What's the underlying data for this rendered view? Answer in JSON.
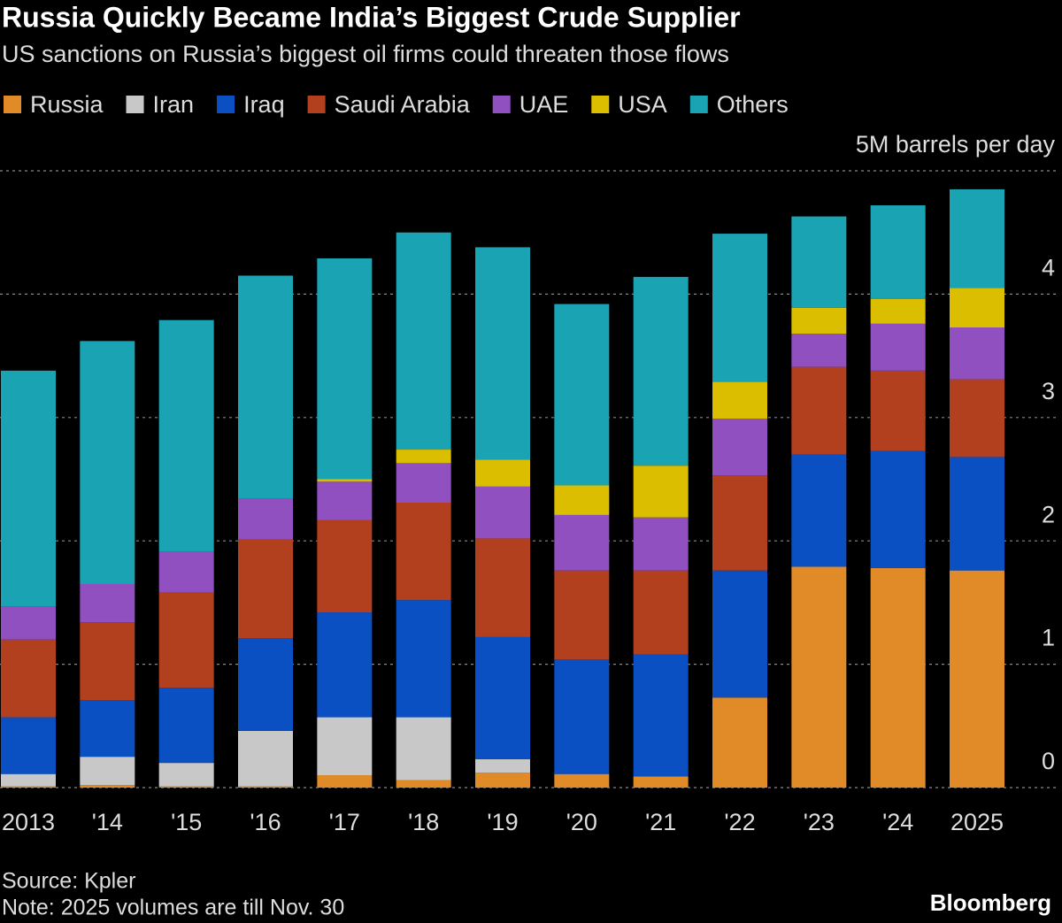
{
  "chart_data": {
    "type": "stacked_bar",
    "title": "Russia Quickly Became India’s Biggest Crude Supplier",
    "subtitle": "US sanctions on Russia’s biggest oil firms could threaten those flows",
    "categories": [
      "2013",
      "'14",
      "'15",
      "'16",
      "'17",
      "'18",
      "'19",
      "'20",
      "'21",
      "'22",
      "'23",
      "'24",
      "2025"
    ],
    "series": [
      {
        "name": "Russia",
        "color": "#e08b27",
        "values": [
          0.01,
          0.02,
          0.01,
          0.01,
          0.1,
          0.06,
          0.12,
          0.11,
          0.09,
          0.73,
          1.79,
          1.78,
          1.76
        ]
      },
      {
        "name": "Iran",
        "color": "#c8c8c8",
        "values": [
          0.1,
          0.23,
          0.19,
          0.45,
          0.47,
          0.51,
          0.11,
          0,
          0,
          0,
          0,
          0,
          0
        ]
      },
      {
        "name": "Iraq",
        "color": "#0a50c3",
        "values": [
          0.46,
          0.46,
          0.61,
          0.75,
          0.85,
          0.95,
          0.99,
          0.93,
          0.99,
          1.03,
          0.91,
          0.95,
          0.92
        ]
      },
      {
        "name": "Saudi Arabia",
        "color": "#b23f1e",
        "values": [
          0.63,
          0.63,
          0.77,
          0.8,
          0.75,
          0.79,
          0.8,
          0.72,
          0.68,
          0.77,
          0.71,
          0.65,
          0.63
        ]
      },
      {
        "name": "UAE",
        "color": "#9150c0",
        "values": [
          0.27,
          0.31,
          0.33,
          0.33,
          0.31,
          0.32,
          0.42,
          0.45,
          0.43,
          0.46,
          0.27,
          0.38,
          0.42
        ]
      },
      {
        "name": "USA",
        "color": "#dcbe00",
        "values": [
          0,
          0,
          0,
          0,
          0.02,
          0.11,
          0.22,
          0.24,
          0.42,
          0.3,
          0.21,
          0.2,
          0.32
        ]
      },
      {
        "name": "Others",
        "color": "#1aa3b3",
        "values": [
          1.91,
          1.97,
          1.88,
          1.81,
          1.79,
          1.76,
          1.72,
          1.47,
          1.53,
          1.2,
          0.74,
          0.76,
          0.8
        ]
      }
    ],
    "ylim": [
      0,
      5
    ],
    "yticks": [
      0,
      1,
      2,
      3,
      4,
      {
        "value": 5,
        "label": "5M barrels per day"
      }
    ],
    "grid": true,
    "source": "Source: Kpler",
    "note": "Note: 2025 volumes are till Nov. 30",
    "brand": "Bloomberg"
  }
}
